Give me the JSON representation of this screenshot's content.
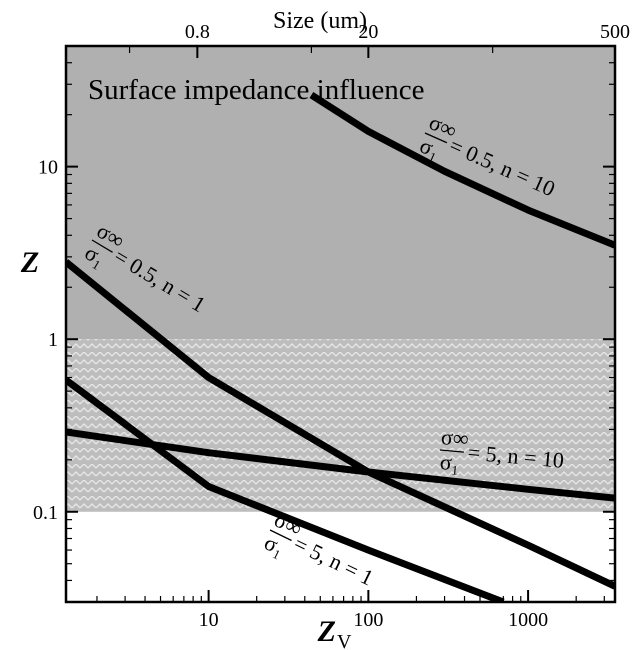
{
  "chart_data": {
    "type": "line",
    "title": "",
    "xlabel": "Z",
    "xlabel_subscript": "V",
    "ylabel": "Z",
    "top_axis_label": "Size (um)",
    "xscale": "log",
    "yscale": "log",
    "xlim": [
      1.28,
      3500
    ],
    "ylim": [
      0.03,
      50
    ],
    "x_ticks": [
      10,
      100,
      1000
    ],
    "x_tick_labels": [
      "10",
      "100",
      "1000"
    ],
    "y_ticks": [
      0.1,
      1,
      10
    ],
    "y_tick_labels": [
      "0.1",
      "1",
      "10"
    ],
    "top_ticks_zv": [
      8.5,
      100,
      3500
    ],
    "top_tick_labels": [
      "0.8",
      "20",
      "500"
    ],
    "regions": [
      {
        "label": "Surface impedance influence",
        "y_range": [
          1,
          50
        ],
        "fill": "#b0b0b0",
        "pattern": "solid"
      },
      {
        "label": "",
        "y_range": [
          0.1,
          1
        ],
        "fill": "#c8c8c8",
        "pattern": "herringbone"
      }
    ],
    "series": [
      {
        "label_ratio_num": "σ∞",
        "label_ratio_den": "σ₁",
        "label_tail": "= 0.5, n = 10",
        "x": [
          44,
          100,
          300,
          1000,
          3500
        ],
        "y": [
          26,
          16,
          9.4,
          5.6,
          3.5
        ]
      },
      {
        "label_ratio_num": "σ∞",
        "label_ratio_den": "σ₁",
        "label_tail": "= 0.5, n = 1",
        "x": [
          1.28,
          10,
          100,
          1000,
          3500
        ],
        "y": [
          2.8,
          0.6,
          0.17,
          0.064,
          0.037
        ]
      },
      {
        "label_ratio_num": "σ∞",
        "label_ratio_den": "σ₁",
        "label_tail": "= 5, n = 10",
        "x": [
          1.28,
          10,
          100,
          1000,
          3500
        ],
        "y": [
          0.29,
          0.22,
          0.17,
          0.135,
          0.12
        ]
      },
      {
        "label_ratio_num": "σ∞",
        "label_ratio_den": "σ₁",
        "label_tail": "= 5, n = 1",
        "x": [
          1.28,
          10,
          100,
          700
        ],
        "y": [
          0.58,
          0.14,
          0.06,
          0.03
        ]
      }
    ]
  }
}
